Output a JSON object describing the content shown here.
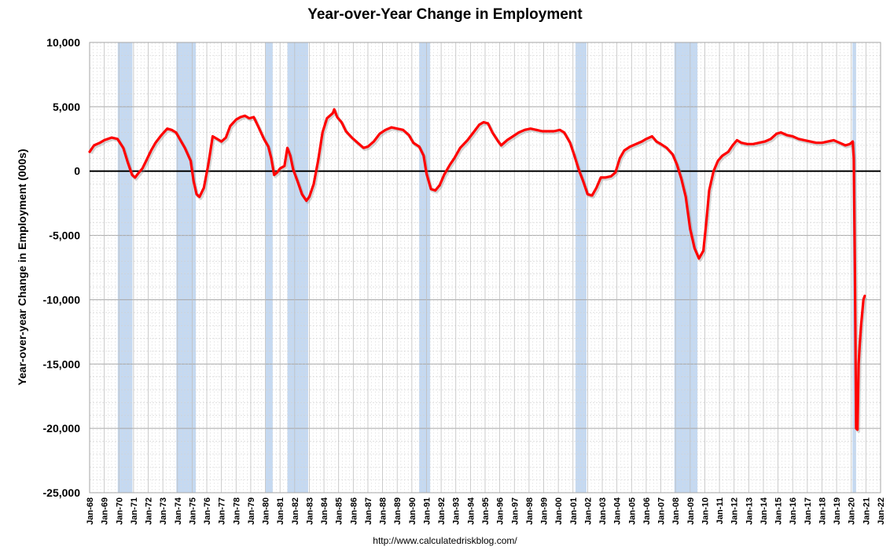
{
  "chart_data": {
    "type": "line",
    "title": "Year-over-Year Change in Employment",
    "ylabel": "Year-over-year Change in Employment (000s)",
    "xlabel": "",
    "source": "http://www.calculatedriskblog.com/",
    "ylim": [
      -25000,
      10000
    ],
    "yticks": [
      10000,
      5000,
      0,
      -5000,
      -10000,
      -15000,
      -20000,
      -25000
    ],
    "ytick_labels": [
      "10,000",
      "5,000",
      "0",
      "-5,000",
      "-10,000",
      "-15,000",
      "-20,000",
      "-25,000"
    ],
    "xlim": [
      1968.0,
      2022.0
    ],
    "xtick_labels": [
      "Jan-68",
      "Jan-69",
      "Jan-70",
      "Jan-71",
      "Jan-72",
      "Jan-73",
      "Jan-74",
      "Jan-75",
      "Jan-76",
      "Jan-77",
      "Jan-78",
      "Jan-79",
      "Jan-80",
      "Jan-81",
      "Jan-82",
      "Jan-83",
      "Jan-84",
      "Jan-85",
      "Jan-86",
      "Jan-87",
      "Jan-88",
      "Jan-89",
      "Jan-90",
      "Jan-91",
      "Jan-92",
      "Jan-93",
      "Jan-94",
      "Jan-95",
      "Jan-96",
      "Jan-97",
      "Jan-98",
      "Jan-99",
      "Jan-00",
      "Jan-01",
      "Jan-02",
      "Jan-03",
      "Jan-04",
      "Jan-05",
      "Jan-06",
      "Jan-07",
      "Jan-08",
      "Jan-09",
      "Jan-10",
      "Jan-11",
      "Jan-12",
      "Jan-13",
      "Jan-14",
      "Jan-15",
      "Jan-16",
      "Jan-17",
      "Jan-18",
      "Jan-19",
      "Jan-20",
      "Jan-21",
      "Jan-22"
    ],
    "grid": true,
    "line_color": "#ff0000",
    "recession_color": "#c5d9f1",
    "recessions": [
      [
        1969.92,
        1970.92
      ],
      [
        1973.92,
        1975.25
      ],
      [
        1980.0,
        1980.5
      ],
      [
        1981.5,
        1982.92
      ],
      [
        1990.5,
        1991.25
      ],
      [
        2001.17,
        2001.92
      ],
      [
        2007.92,
        2009.5
      ],
      [
        2020.08,
        2020.33
      ]
    ],
    "series": [
      {
        "name": "",
        "points": [
          [
            1968.0,
            1500
          ],
          [
            1968.3,
            2000
          ],
          [
            1968.7,
            2200
          ],
          [
            1969.0,
            2400
          ],
          [
            1969.5,
            2600
          ],
          [
            1969.9,
            2500
          ],
          [
            1970.3,
            1800
          ],
          [
            1970.6,
            700
          ],
          [
            1970.9,
            -300
          ],
          [
            1971.1,
            -500
          ],
          [
            1971.3,
            -200
          ],
          [
            1971.6,
            200
          ],
          [
            1971.9,
            900
          ],
          [
            1972.2,
            1600
          ],
          [
            1972.5,
            2200
          ],
          [
            1972.9,
            2800
          ],
          [
            1973.3,
            3300
          ],
          [
            1973.6,
            3200
          ],
          [
            1973.9,
            3000
          ],
          [
            1974.2,
            2400
          ],
          [
            1974.5,
            1800
          ],
          [
            1974.9,
            800
          ],
          [
            1975.1,
            -800
          ],
          [
            1975.3,
            -1800
          ],
          [
            1975.5,
            -2000
          ],
          [
            1975.8,
            -1300
          ],
          [
            1976.1,
            500
          ],
          [
            1976.4,
            2700
          ],
          [
            1976.7,
            2500
          ],
          [
            1977.0,
            2300
          ],
          [
            1977.3,
            2600
          ],
          [
            1977.6,
            3500
          ],
          [
            1978.0,
            4000
          ],
          [
            1978.3,
            4200
          ],
          [
            1978.6,
            4300
          ],
          [
            1978.9,
            4100
          ],
          [
            1979.2,
            4200
          ],
          [
            1979.5,
            3500
          ],
          [
            1979.9,
            2500
          ],
          [
            1980.2,
            1900
          ],
          [
            1980.4,
            1000
          ],
          [
            1980.6,
            -300
          ],
          [
            1980.8,
            -100
          ],
          [
            1981.0,
            200
          ],
          [
            1981.3,
            400
          ],
          [
            1981.5,
            1800
          ],
          [
            1981.7,
            1200
          ],
          [
            1981.9,
            100
          ],
          [
            1982.2,
            -800
          ],
          [
            1982.5,
            -1800
          ],
          [
            1982.8,
            -2300
          ],
          [
            1983.0,
            -2000
          ],
          [
            1983.3,
            -1000
          ],
          [
            1983.6,
            800
          ],
          [
            1983.9,
            3000
          ],
          [
            1984.2,
            4100
          ],
          [
            1984.6,
            4500
          ],
          [
            1984.7,
            4800
          ],
          [
            1984.9,
            4200
          ],
          [
            1985.2,
            3800
          ],
          [
            1985.5,
            3100
          ],
          [
            1985.9,
            2600
          ],
          [
            1986.3,
            2200
          ],
          [
            1986.7,
            1800
          ],
          [
            1987.0,
            1900
          ],
          [
            1987.4,
            2300
          ],
          [
            1987.8,
            2900
          ],
          [
            1988.2,
            3200
          ],
          [
            1988.6,
            3400
          ],
          [
            1989.0,
            3300
          ],
          [
            1989.4,
            3200
          ],
          [
            1989.8,
            2800
          ],
          [
            1990.1,
            2200
          ],
          [
            1990.5,
            1900
          ],
          [
            1990.8,
            1200
          ],
          [
            1991.0,
            -200
          ],
          [
            1991.3,
            -1400
          ],
          [
            1991.6,
            -1500
          ],
          [
            1991.9,
            -1100
          ],
          [
            1992.2,
            -300
          ],
          [
            1992.6,
            500
          ],
          [
            1992.9,
            1000
          ],
          [
            1993.3,
            1800
          ],
          [
            1993.8,
            2400
          ],
          [
            1994.2,
            3000
          ],
          [
            1994.6,
            3600
          ],
          [
            1994.9,
            3800
          ],
          [
            1995.2,
            3700
          ],
          [
            1995.5,
            3000
          ],
          [
            1995.9,
            2300
          ],
          [
            1996.1,
            2000
          ],
          [
            1996.5,
            2400
          ],
          [
            1996.9,
            2700
          ],
          [
            1997.3,
            3000
          ],
          [
            1997.7,
            3200
          ],
          [
            1998.1,
            3300
          ],
          [
            1998.5,
            3200
          ],
          [
            1998.9,
            3100
          ],
          [
            1999.3,
            3100
          ],
          [
            1999.7,
            3100
          ],
          [
            2000.1,
            3200
          ],
          [
            2000.4,
            3000
          ],
          [
            2000.8,
            2200
          ],
          [
            2001.1,
            1200
          ],
          [
            2001.4,
            100
          ],
          [
            2001.7,
            -800
          ],
          [
            2002.0,
            -1800
          ],
          [
            2002.3,
            -1900
          ],
          [
            2002.6,
            -1300
          ],
          [
            2002.9,
            -500
          ],
          [
            2003.2,
            -500
          ],
          [
            2003.6,
            -400
          ],
          [
            2003.9,
            -100
          ],
          [
            2004.2,
            1000
          ],
          [
            2004.5,
            1600
          ],
          [
            2004.9,
            1900
          ],
          [
            2005.3,
            2100
          ],
          [
            2005.7,
            2300
          ],
          [
            2006.0,
            2500
          ],
          [
            2006.4,
            2700
          ],
          [
            2006.7,
            2300
          ],
          [
            2007.0,
            2100
          ],
          [
            2007.4,
            1800
          ],
          [
            2007.8,
            1300
          ],
          [
            2008.1,
            500
          ],
          [
            2008.4,
            -600
          ],
          [
            2008.7,
            -2000
          ],
          [
            2009.0,
            -4500
          ],
          [
            2009.3,
            -6000
          ],
          [
            2009.6,
            -6800
          ],
          [
            2009.9,
            -6200
          ],
          [
            2010.1,
            -4000
          ],
          [
            2010.3,
            -1500
          ],
          [
            2010.6,
            0
          ],
          [
            2010.9,
            800
          ],
          [
            2011.2,
            1200
          ],
          [
            2011.6,
            1500
          ],
          [
            2011.9,
            2000
          ],
          [
            2012.2,
            2400
          ],
          [
            2012.5,
            2200
          ],
          [
            2012.9,
            2100
          ],
          [
            2013.3,
            2100
          ],
          [
            2013.7,
            2200
          ],
          [
            2014.1,
            2300
          ],
          [
            2014.5,
            2500
          ],
          [
            2014.9,
            2900
          ],
          [
            2015.2,
            3000
          ],
          [
            2015.6,
            2800
          ],
          [
            2016.0,
            2700
          ],
          [
            2016.4,
            2500
          ],
          [
            2016.8,
            2400
          ],
          [
            2017.2,
            2300
          ],
          [
            2017.6,
            2200
          ],
          [
            2018.0,
            2200
          ],
          [
            2018.4,
            2300
          ],
          [
            2018.8,
            2400
          ],
          [
            2019.2,
            2200
          ],
          [
            2019.6,
            2000
          ],
          [
            2019.9,
            2100
          ],
          [
            2020.1,
            2300
          ],
          [
            2020.17,
            1000
          ],
          [
            2020.25,
            -8000
          ],
          [
            2020.33,
            -20000
          ],
          [
            2020.42,
            -20100
          ],
          [
            2020.5,
            -15000
          ],
          [
            2020.58,
            -13500
          ],
          [
            2020.67,
            -12000
          ],
          [
            2020.75,
            -11000
          ],
          [
            2020.83,
            -10000
          ],
          [
            2020.92,
            -9700
          ]
        ]
      }
    ]
  }
}
